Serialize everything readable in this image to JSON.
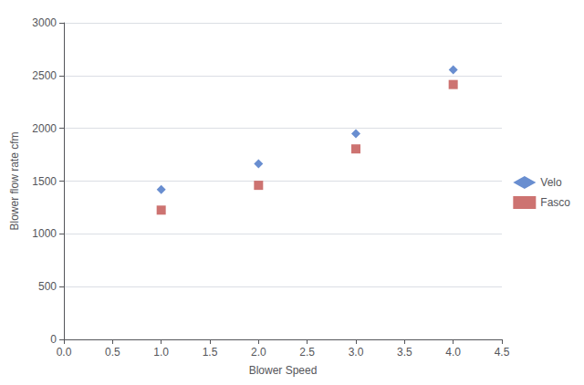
{
  "chart_data": {
    "type": "scatter",
    "xlabel": "Blower Speed",
    "ylabel": "Blower flow rate cfm",
    "x": [
      1,
      2,
      3,
      4
    ],
    "series": [
      {
        "name": "Velo",
        "color": "#4472C4",
        "marker": "diamond",
        "values": [
          1420,
          1665,
          1950,
          2555
        ]
      },
      {
        "name": "Fasco",
        "color": "#C0504D",
        "marker": "square",
        "values": [
          1225,
          1460,
          1805,
          2415
        ]
      }
    ],
    "xlim": [
      0,
      4.5
    ],
    "ylim": [
      0,
      3000
    ],
    "xticks": [
      {
        "value": 0,
        "label": "0.0"
      },
      0.5,
      {
        "value": 1.0,
        "label": "1.0"
      },
      1.5,
      {
        "value": 2.0,
        "label": "2.0"
      },
      2.5,
      {
        "value": 3.0,
        "label": "3.0"
      },
      3.5,
      {
        "value": 4.0,
        "label": "4.0"
      },
      4.5
    ],
    "yticks": [
      0,
      500,
      1000,
      1500,
      2000,
      2500,
      3000
    ],
    "grid": "y",
    "legend": "right"
  }
}
